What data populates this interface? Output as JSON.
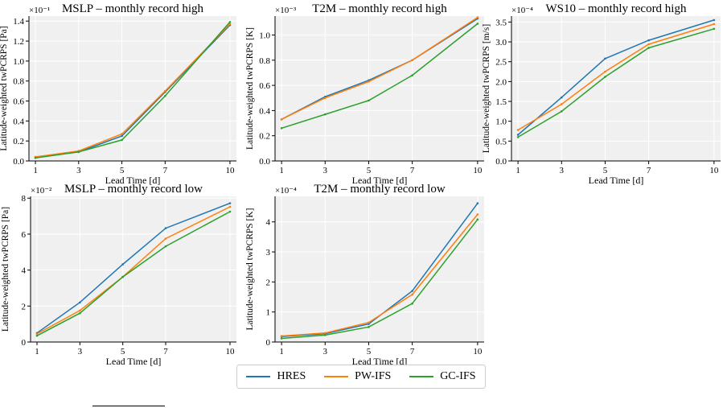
{
  "chart_data": [
    {
      "type": "line",
      "title": "MSLP – monthly record high",
      "xlabel": "Lead Time [d]",
      "ylabel": "Latitude-weighted twPCRPS [Pa]",
      "y_multiplier": "×10⁻¹",
      "x": [
        1,
        3,
        5,
        7,
        10
      ],
      "xlim": [
        0.7,
        10.3
      ],
      "ylim": [
        0,
        1.45
      ],
      "yticks": [
        0.0,
        0.2,
        0.4,
        0.6,
        0.8,
        1.0,
        1.2,
        1.4
      ],
      "ytick_labels": [
        "0.0",
        "0.2",
        "0.4",
        "0.6",
        "0.8",
        "1.0",
        "1.2",
        "1.4"
      ],
      "series": [
        {
          "name": "HRES",
          "values": [
            0.04,
            0.09,
            0.25,
            0.69,
            1.36
          ]
        },
        {
          "name": "PW-IFS",
          "values": [
            0.04,
            0.1,
            0.27,
            0.7,
            1.37
          ]
        },
        {
          "name": "GC-IFS",
          "values": [
            0.03,
            0.09,
            0.21,
            0.65,
            1.39
          ]
        }
      ]
    },
    {
      "type": "line",
      "title": "T2M – monthly record high",
      "xlabel": "Lead Time [d]",
      "ylabel": "Latitude-weighted twPCRPS [K]",
      "y_multiplier": "×10⁻³",
      "x": [
        1,
        3,
        5,
        7,
        10
      ],
      "xlim": [
        0.7,
        10.3
      ],
      "ylim": [
        0,
        1.15
      ],
      "yticks": [
        0.0,
        0.2,
        0.4,
        0.6,
        0.8,
        1.0
      ],
      "ytick_labels": [
        "0.0",
        "0.2",
        "0.4",
        "0.6",
        "0.8",
        "1.0"
      ],
      "series": [
        {
          "name": "HRES",
          "values": [
            0.33,
            0.51,
            0.64,
            0.8,
            1.13
          ]
        },
        {
          "name": "PW-IFS",
          "values": [
            0.33,
            0.5,
            0.63,
            0.8,
            1.14
          ]
        },
        {
          "name": "GC-IFS",
          "values": [
            0.26,
            0.37,
            0.48,
            0.68,
            1.09
          ]
        }
      ]
    },
    {
      "type": "line",
      "title": "WS10 – monthly record high",
      "xlabel": "Lead Time [d]",
      "ylabel": "Latitude-weighted twPCRPS [m/s]",
      "y_multiplier": "×10⁻⁴",
      "x": [
        1,
        3,
        5,
        7,
        10
      ],
      "xlim": [
        0.7,
        10.3
      ],
      "ylim": [
        0,
        3.65
      ],
      "yticks": [
        0.0,
        0.5,
        1.0,
        1.5,
        2.0,
        2.5,
        3.0,
        3.5
      ],
      "ytick_labels": [
        "0.0",
        "0.5",
        "1.0",
        "1.5",
        "2.0",
        "2.5",
        "3.0",
        "3.5"
      ],
      "series": [
        {
          "name": "HRES",
          "values": [
            0.66,
            1.6,
            2.58,
            3.04,
            3.55
          ]
        },
        {
          "name": "PW-IFS",
          "values": [
            0.78,
            1.43,
            2.25,
            2.94,
            3.45
          ]
        },
        {
          "name": "GC-IFS",
          "values": [
            0.6,
            1.25,
            2.12,
            2.85,
            3.33
          ]
        }
      ]
    },
    {
      "type": "line",
      "title": "MSLP – monthly record low",
      "xlabel": "Lead Time [d]",
      "ylabel": "Latitude-weighted twPCRPS [Pa]",
      "y_multiplier": "×10⁻²",
      "x": [
        1,
        3,
        5,
        7,
        10
      ],
      "xlim": [
        0.7,
        10.3
      ],
      "ylim": [
        0,
        8.1
      ],
      "yticks": [
        0,
        2,
        4,
        6,
        8
      ],
      "ytick_labels": [
        "0",
        "2",
        "4",
        "6",
        "8"
      ],
      "series": [
        {
          "name": "HRES",
          "values": [
            0.5,
            2.2,
            4.32,
            6.33,
            7.72
          ]
        },
        {
          "name": "PW-IFS",
          "values": [
            0.45,
            1.75,
            3.62,
            5.75,
            7.52
          ]
        },
        {
          "name": "GC-IFS",
          "values": [
            0.35,
            1.6,
            3.62,
            5.32,
            7.25
          ]
        }
      ]
    },
    {
      "type": "line",
      "title": "T2M – monthly record low",
      "xlabel": "Lead Time [d]",
      "ylabel": "Latitude-weighted twPCRPS [K]",
      "y_multiplier": "×10⁻⁴",
      "x": [
        1,
        3,
        5,
        7,
        10
      ],
      "xlim": [
        0.7,
        10.3
      ],
      "ylim": [
        0,
        4.85
      ],
      "yticks": [
        0,
        1,
        2,
        3,
        4
      ],
      "ytick_labels": [
        "0",
        "1",
        "2",
        "3",
        "4"
      ],
      "series": [
        {
          "name": "HRES",
          "values": [
            0.18,
            0.28,
            0.6,
            1.7,
            4.62
          ]
        },
        {
          "name": "PW-IFS",
          "values": [
            0.2,
            0.3,
            0.65,
            1.58,
            4.25
          ]
        },
        {
          "name": "GC-IFS",
          "values": [
            0.12,
            0.23,
            0.5,
            1.28,
            4.08
          ]
        }
      ]
    }
  ],
  "legend": {
    "placement": "bottom-center",
    "entries": [
      {
        "label": "HRES",
        "color": "#1f77b4"
      },
      {
        "label": "PW-IFS",
        "color": "#ff7f0e"
      },
      {
        "label": "GC-IFS",
        "color": "#2ca02c"
      }
    ]
  },
  "style": {
    "plot_background": "#f0f0f0",
    "grid_color": "#ffffff"
  }
}
